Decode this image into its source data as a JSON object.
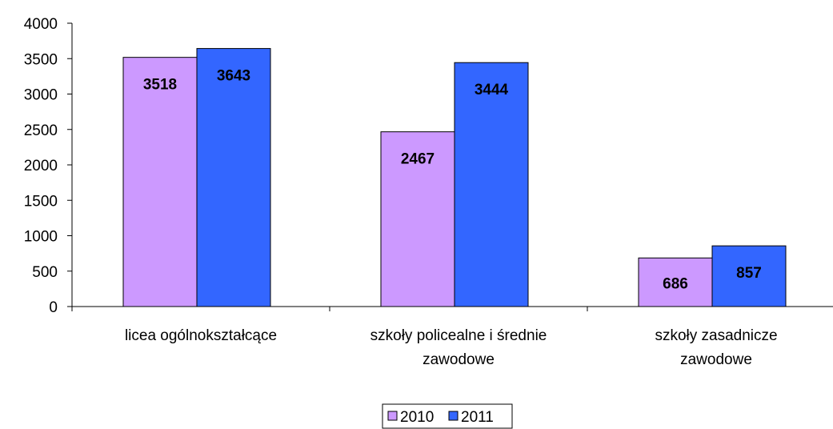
{
  "chart_data": {
    "type": "bar",
    "categories": [
      [
        "licea ogólnokształcące"
      ],
      [
        "szkoły policealne i średnie",
        "zawodowe"
      ],
      [
        "szkoły zasadnicze",
        "zawodowe"
      ]
    ],
    "series": [
      {
        "name": "2010",
        "values": [
          3518,
          2467,
          686
        ],
        "color": "#cc99ff"
      },
      {
        "name": "2011",
        "values": [
          3643,
          3444,
          857
        ],
        "color": "#3366ff"
      }
    ],
    "ylim": [
      0,
      4000
    ],
    "yticks": [
      0,
      500,
      1000,
      1500,
      2000,
      2500,
      3000,
      3500,
      4000
    ],
    "data_labels": true,
    "grid": false,
    "legend_position": "bottom",
    "title": "",
    "xlabel": "",
    "ylabel": ""
  }
}
